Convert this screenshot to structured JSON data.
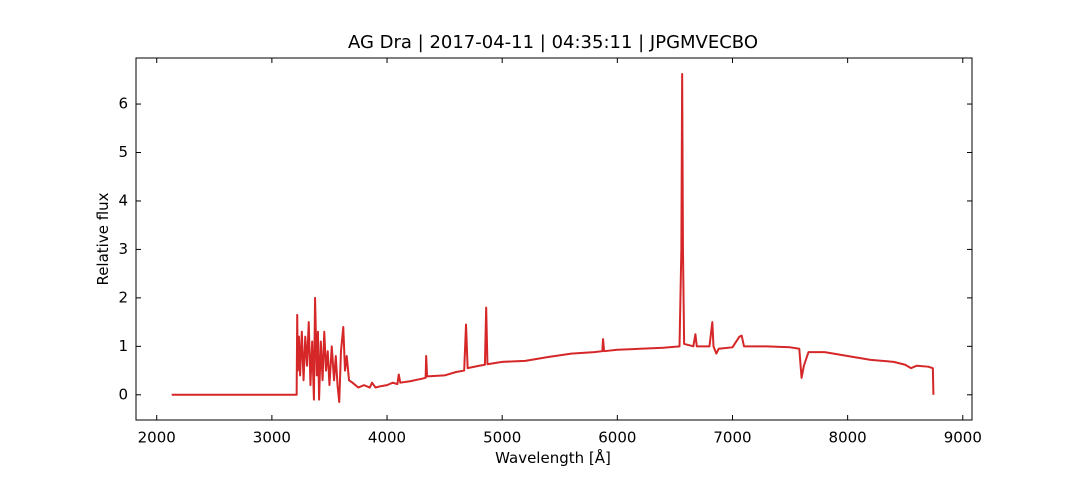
{
  "chart_data": {
    "type": "line",
    "title": "AG Dra | 2017-04-11 | 04:35:11 | JPGMVECBO",
    "xlabel": "Wavelength [Å]",
    "ylabel": "Relative flux",
    "xlim": [
      1820,
      9080
    ],
    "ylim": [
      -0.52,
      6.95
    ],
    "xticks": [
      2000,
      3000,
      4000,
      5000,
      6000,
      7000,
      8000,
      9000
    ],
    "yticks": [
      0,
      1,
      2,
      3,
      4,
      5,
      6
    ],
    "series": [
      {
        "color": "#d62728",
        "x": [
          2130,
          3215,
          3220,
          3225,
          3235,
          3245,
          3260,
          3275,
          3290,
          3305,
          3320,
          3335,
          3350,
          3365,
          3375,
          3390,
          3400,
          3410,
          3425,
          3440,
          3455,
          3470,
          3485,
          3500,
          3520,
          3540,
          3555,
          3570,
          3585,
          3600,
          3620,
          3635,
          3650,
          3670,
          3700,
          3750,
          3800,
          3850,
          3870,
          3900,
          3950,
          4000,
          4050,
          4090,
          4102,
          4115,
          4200,
          4300,
          4335,
          4340,
          4348,
          4500,
          4600,
          4670,
          4686,
          4700,
          4800,
          4850,
          4861,
          4872,
          5000,
          5200,
          5400,
          5600,
          5800,
          5870,
          5876,
          5885,
          6000,
          6200,
          6400,
          6540,
          6556,
          6563,
          6570,
          6580,
          6660,
          6678,
          6690,
          6800,
          6825,
          6835,
          6860,
          6880,
          7000,
          7060,
          7080,
          7100,
          7300,
          7500,
          7580,
          7600,
          7620,
          7660,
          7800,
          8000,
          8200,
          8400,
          8500,
          8550,
          8600,
          8700,
          8740,
          8745
        ],
        "values": [
          0,
          0,
          1.65,
          0.5,
          1.2,
          0.4,
          1.3,
          0.3,
          1.2,
          0.6,
          1.5,
          0.2,
          1.1,
          -0.1,
          2.0,
          0.4,
          1.3,
          -0.1,
          1.1,
          0.3,
          1.3,
          0.5,
          0.9,
          0.2,
          1.0,
          0.3,
          0.8,
          0.2,
          -0.15,
          0.9,
          1.4,
          0.5,
          0.8,
          0.3,
          0.25,
          0.15,
          0.2,
          0.15,
          0.25,
          0.15,
          0.18,
          0.2,
          0.25,
          0.22,
          0.42,
          0.25,
          0.28,
          0.33,
          0.35,
          0.8,
          0.38,
          0.4,
          0.47,
          0.5,
          1.45,
          0.55,
          0.6,
          0.62,
          1.8,
          0.63,
          0.68,
          0.7,
          0.78,
          0.85,
          0.88,
          0.9,
          1.15,
          0.9,
          0.93,
          0.95,
          0.97,
          1.0,
          3,
          6.62,
          3,
          1.05,
          1.0,
          1.25,
          1.0,
          1.0,
          1.5,
          1.0,
          0.85,
          0.95,
          0.98,
          1.2,
          1.22,
          1.0,
          1.0,
          0.98,
          0.95,
          0.35,
          0.6,
          0.88,
          0.88,
          0.8,
          0.72,
          0.68,
          0.62,
          0.55,
          0.6,
          0.58,
          0.55,
          0.0
        ]
      }
    ]
  }
}
